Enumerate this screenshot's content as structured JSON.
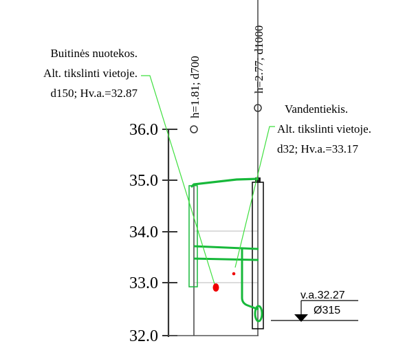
{
  "elevation_axis": {
    "ticks": [
      {
        "label": "36.0",
        "value": 36.0
      },
      {
        "label": "35.0",
        "value": 35.0
      },
      {
        "label": "34.0",
        "value": 34.0
      },
      {
        "label": "33.0",
        "value": 33.0
      },
      {
        "label": "32.0",
        "value": 32.0
      }
    ]
  },
  "wells": [
    {
      "label": "h=1.81; d700"
    },
    {
      "label": "h=2.77; d1000"
    }
  ],
  "annotations": {
    "sewer": {
      "line1": "Buitinės nuotekos.",
      "line2": "Alt. tikslinti vietoje.",
      "line3": "d150; Hv.a.=32.87"
    },
    "water": {
      "line1": "Vandentiekis.",
      "line2": "Alt. tikslinti vietoje.",
      "line3": "d32; Hv.a.=33.17"
    }
  },
  "pipe_marker": {
    "elevation": "v.a.32.27",
    "diameter": "Ø315"
  },
  "colors": {
    "pipe_green": "#17b83a",
    "leader_green": "#3ddf3d",
    "utility_red": "#ee0000",
    "line_black": "#000000",
    "grid_gray": "#cfcfcf"
  }
}
